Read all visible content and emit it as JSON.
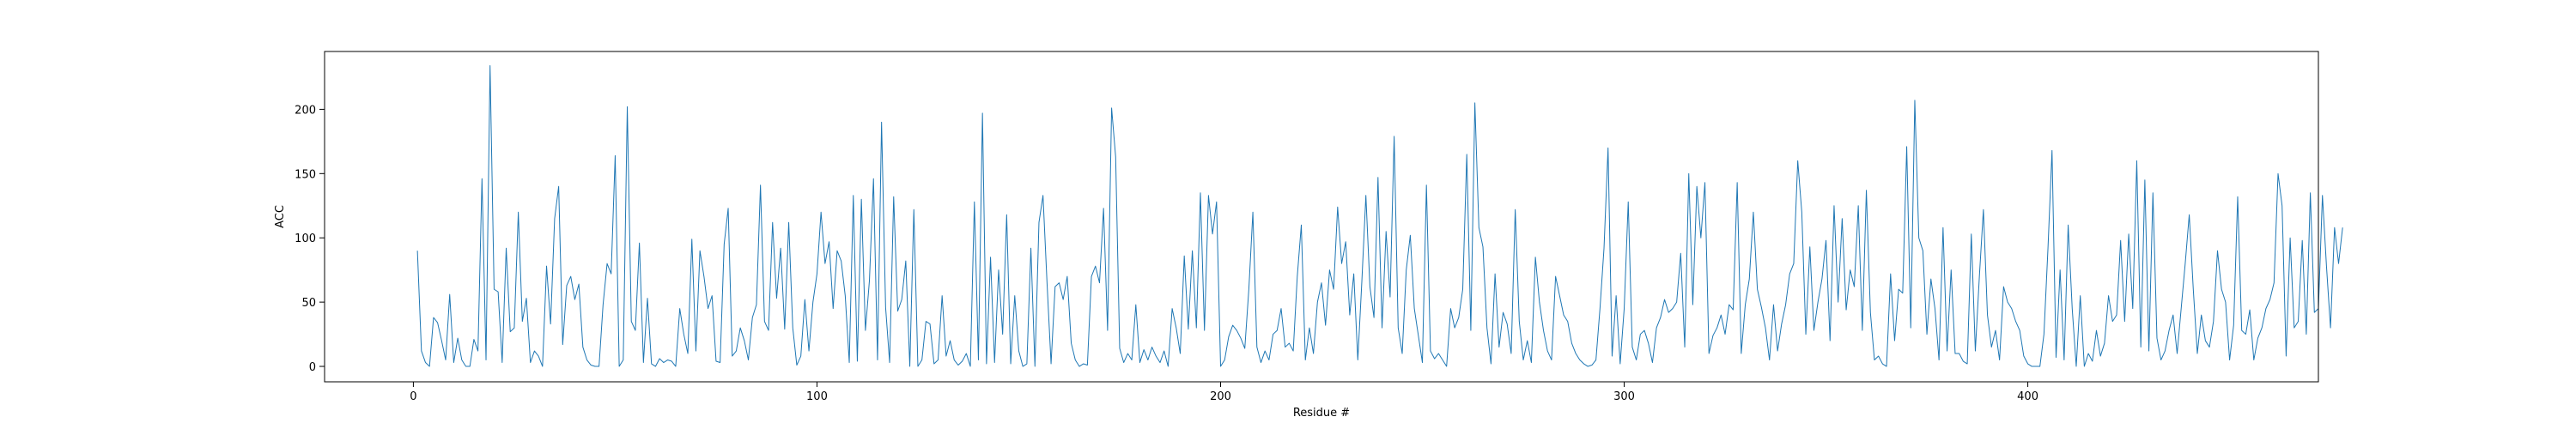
{
  "chart_data": {
    "type": "line",
    "title": "",
    "xlabel": "Residue #",
    "ylabel": "ACC",
    "xlim": [
      -22,
      472
    ],
    "ylim": [
      -12,
      245
    ],
    "xticks": [
      0,
      100,
      200,
      300,
      400
    ],
    "yticks": [
      0,
      50,
      100,
      150,
      200
    ],
    "grid": false,
    "legend": "none",
    "line_color": "#1f77b4",
    "series": [
      {
        "x_start": 1,
        "values": [
          90,
          12,
          3,
          0,
          38,
          34,
          20,
          5,
          56,
          3,
          22,
          5,
          0,
          0,
          21,
          12,
          146,
          5,
          234,
          60,
          58,
          3,
          92,
          27,
          30,
          120,
          35,
          53,
          3,
          12,
          8,
          0,
          78,
          33,
          115,
          140,
          17,
          63,
          70,
          52,
          64,
          15,
          5,
          1,
          0,
          0,
          48,
          80,
          72,
          164,
          0,
          5,
          202,
          35,
          28,
          96,
          3,
          53,
          2,
          0,
          6,
          3,
          5,
          4,
          0,
          45,
          25,
          10,
          99,
          12,
          90,
          70,
          45,
          55,
          4,
          3,
          95,
          123,
          8,
          12,
          30,
          20,
          5,
          38,
          48,
          141,
          35,
          28,
          112,
          53,
          92,
          29,
          112,
          30,
          1,
          8,
          52,
          12,
          50,
          72,
          120,
          80,
          97,
          45,
          90,
          82,
          55,
          3,
          133,
          4,
          130,
          28,
          67,
          146,
          5,
          190,
          46,
          3,
          132,
          43,
          52,
          82,
          0,
          122,
          0,
          5,
          35,
          33,
          2,
          5,
          55,
          8,
          20,
          5,
          1,
          4,
          10,
          0,
          128,
          5,
          197,
          2,
          85,
          3,
          75,
          25,
          118,
          2,
          55,
          12,
          0,
          2,
          92,
          0,
          112,
          133,
          65,
          2,
          62,
          65,
          52,
          70,
          18,
          5,
          0,
          2,
          1,
          70,
          78,
          65,
          123,
          28,
          201,
          163,
          14,
          3,
          10,
          5,
          48,
          3,
          13,
          5,
          15,
          8,
          3,
          12,
          0,
          45,
          30,
          10,
          86,
          29,
          90,
          30,
          135,
          28,
          133,
          103,
          128,
          0,
          5,
          23,
          32,
          28,
          22,
          14,
          60,
          120,
          15,
          3,
          12,
          5,
          25,
          28,
          45,
          15,
          18,
          12,
          70,
          110,
          5,
          30,
          10,
          50,
          65,
          32,
          75,
          60,
          124,
          80,
          97,
          40,
          72,
          5,
          66,
          133,
          62,
          38,
          147,
          30,
          105,
          54,
          179,
          30,
          10,
          75,
          102,
          45,
          24,
          3,
          141,
          12,
          6,
          10,
          5,
          0,
          45,
          30,
          38,
          60,
          165,
          28,
          205,
          108,
          93,
          30,
          2,
          72,
          15,
          42,
          33,
          10,
          122,
          35,
          5,
          20,
          3,
          85,
          50,
          28,
          12,
          5,
          70,
          55,
          40,
          35,
          18,
          10,
          5,
          2,
          0,
          1,
          5,
          45,
          92,
          170,
          8,
          55,
          2,
          45,
          128,
          15,
          5,
          25,
          28,
          18,
          3,
          30,
          38,
          52,
          42,
          45,
          50,
          88,
          15,
          150,
          48,
          140,
          100,
          143,
          10,
          24,
          30,
          40,
          25,
          48,
          44,
          143,
          10,
          48,
          68,
          120,
          60,
          46,
          30,
          5,
          48,
          12,
          33,
          48,
          72,
          80,
          160,
          120,
          25,
          93,
          28,
          50,
          68,
          98,
          20,
          125,
          50,
          115,
          44,
          75,
          62,
          125,
          28,
          137,
          42,
          5,
          8,
          2,
          0,
          72,
          20,
          60,
          57,
          171,
          30,
          207,
          100,
          90,
          25,
          68,
          45,
          5,
          108,
          12,
          75,
          10,
          10,
          4,
          2,
          103,
          12,
          70,
          122,
          40,
          15,
          28,
          5,
          62,
          50,
          45,
          35,
          28,
          8,
          2,
          0,
          0,
          0,
          25,
          92,
          168,
          7,
          75,
          5,
          110,
          45,
          0,
          55,
          0,
          10,
          4,
          28,
          8,
          18,
          55,
          35,
          40,
          98,
          35,
          103,
          45,
          160,
          15,
          145,
          12,
          135,
          22,
          5,
          12,
          28,
          40,
          10,
          45,
          80,
          118,
          60,
          10,
          40,
          20,
          15,
          35,
          90,
          60,
          50,
          5,
          32,
          132,
          28,
          25,
          44,
          5,
          22,
          30,
          45,
          52,
          65,
          150,
          125,
          8,
          100,
          30,
          35,
          98,
          25,
          135,
          42,
          45,
          133,
          78,
          30,
          108,
          80,
          108
        ]
      }
    ]
  }
}
